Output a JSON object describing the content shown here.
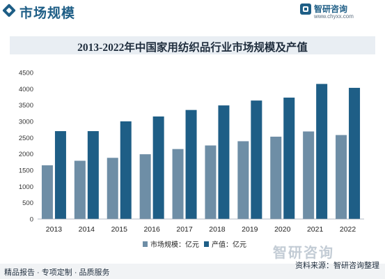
{
  "header": {
    "section_title": "市场规模",
    "brand_name": "智研咨询",
    "brand_url": "www.chyxx.com"
  },
  "chart_data": {
    "type": "bar",
    "title": "2013-2022年中国家用纺织品行业市场规模及产值",
    "categories": [
      "2013",
      "2014",
      "2015",
      "2016",
      "2017",
      "2018",
      "2019",
      "2020",
      "2021",
      "2022"
    ],
    "series": [
      {
        "name": "市场规模：亿元",
        "color": "#6e8ea6",
        "values": [
          1650,
          1790,
          1880,
          1990,
          2150,
          2260,
          2390,
          2530,
          2690,
          2580
        ]
      },
      {
        "name": "产值：亿元",
        "color": "#1e5e86",
        "values": [
          2700,
          2700,
          3000,
          3150,
          3350,
          3490,
          3640,
          3730,
          4150,
          4030
        ]
      }
    ],
    "yticks": [
      "0",
      "500",
      "1000",
      "1500",
      "2000",
      "2500",
      "3000",
      "3500",
      "4000",
      "4500"
    ],
    "ylim": [
      0,
      4500
    ],
    "grid": false,
    "legend_position": "bottom"
  },
  "footer": {
    "left": "精品报告 · 专项定制 · 品质服务",
    "right": "资料来源：智研咨询整理",
    "watermark": "智研咨询"
  }
}
